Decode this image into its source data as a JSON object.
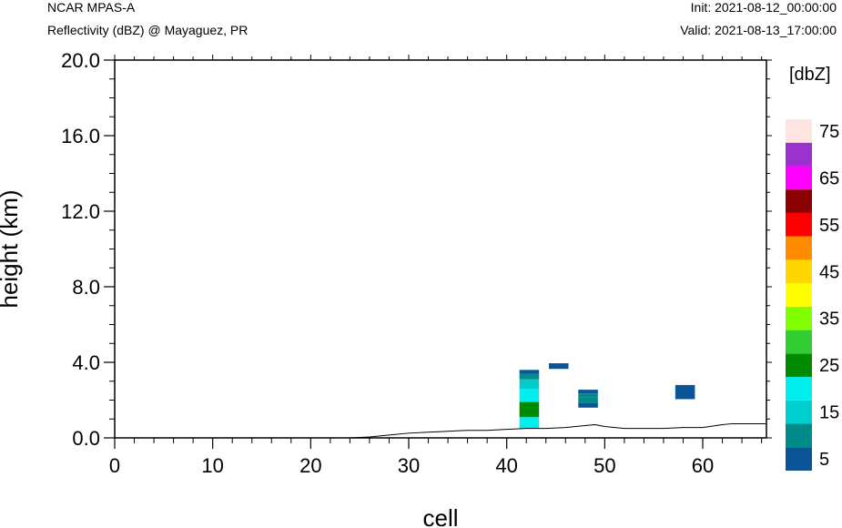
{
  "header": {
    "model": "NCAR MPAS-A",
    "field": "Reflectivity (dBZ) @ Mayaguez, PR",
    "init": "Init: 2021-08-12_00:00:00",
    "valid": "Valid: 2021-08-13_17:00:00"
  },
  "chart_data": {
    "type": "heatmap",
    "xlabel": "cell",
    "ylabel": "height (km)",
    "xlim": [
      0,
      66.5
    ],
    "ylim": [
      0,
      20
    ],
    "xticks": [
      "0",
      "10",
      "20",
      "30",
      "40",
      "50",
      "60"
    ],
    "yticks": [
      "0.0",
      "4.0",
      "8.0",
      "12.0",
      "16.0",
      "20.0"
    ],
    "colorbar": {
      "unit": "[dbZ]",
      "levels": [
        5,
        10,
        15,
        20,
        25,
        30,
        35,
        40,
        45,
        50,
        55,
        60,
        65,
        70,
        75
      ],
      "labels": [
        "5",
        "15",
        "25",
        "35",
        "45",
        "55",
        "65",
        "75"
      ],
      "colors": [
        "#0b5597",
        "#008b8b",
        "#00cdcd",
        "#00eeee",
        "#008b00",
        "#32cd32",
        "#7fff00",
        "#ffff00",
        "#ffd700",
        "#ff8c00",
        "#ff0000",
        "#8b0000",
        "#ff00ff",
        "#9a32cd",
        "#ffe4e1"
      ]
    },
    "cells": [
      {
        "x": 42.3,
        "y0": 0.5,
        "y1": 1.1,
        "dbz": 20
      },
      {
        "x": 42.3,
        "y0": 1.1,
        "y1": 1.9,
        "dbz": 25
      },
      {
        "x": 42.3,
        "y0": 1.9,
        "y1": 2.6,
        "dbz": 20
      },
      {
        "x": 42.3,
        "y0": 2.6,
        "y1": 3.1,
        "dbz": 15
      },
      {
        "x": 42.3,
        "y0": 3.1,
        "y1": 3.4,
        "dbz": 10
      },
      {
        "x": 42.3,
        "y0": 3.4,
        "y1": 3.6,
        "dbz": 5
      },
      {
        "x": 45.3,
        "y0": 3.65,
        "y1": 3.95,
        "dbz": 5
      },
      {
        "x": 48.3,
        "y0": 1.6,
        "y1": 1.85,
        "dbz": 5
      },
      {
        "x": 48.3,
        "y0": 1.85,
        "y1": 2.15,
        "dbz": 10
      },
      {
        "x": 48.3,
        "y0": 2.15,
        "y1": 2.35,
        "dbz": 10
      },
      {
        "x": 48.3,
        "y0": 2.35,
        "y1": 2.55,
        "dbz": 5
      },
      {
        "x": 58.2,
        "y0": 2.05,
        "y1": 2.8,
        "dbz": 5
      }
    ],
    "terrain": {
      "x": [
        0,
        24,
        26,
        28,
        30,
        32,
        34,
        36,
        38,
        40,
        42,
        44,
        46,
        48,
        49,
        50,
        52,
        54,
        56,
        58,
        60,
        62,
        63,
        64,
        66.5
      ],
      "y": [
        0,
        0,
        0.05,
        0.15,
        0.25,
        0.3,
        0.35,
        0.4,
        0.4,
        0.45,
        0.5,
        0.5,
        0.55,
        0.65,
        0.7,
        0.6,
        0.5,
        0.5,
        0.5,
        0.55,
        0.55,
        0.7,
        0.75,
        0.75,
        0.75
      ]
    }
  }
}
